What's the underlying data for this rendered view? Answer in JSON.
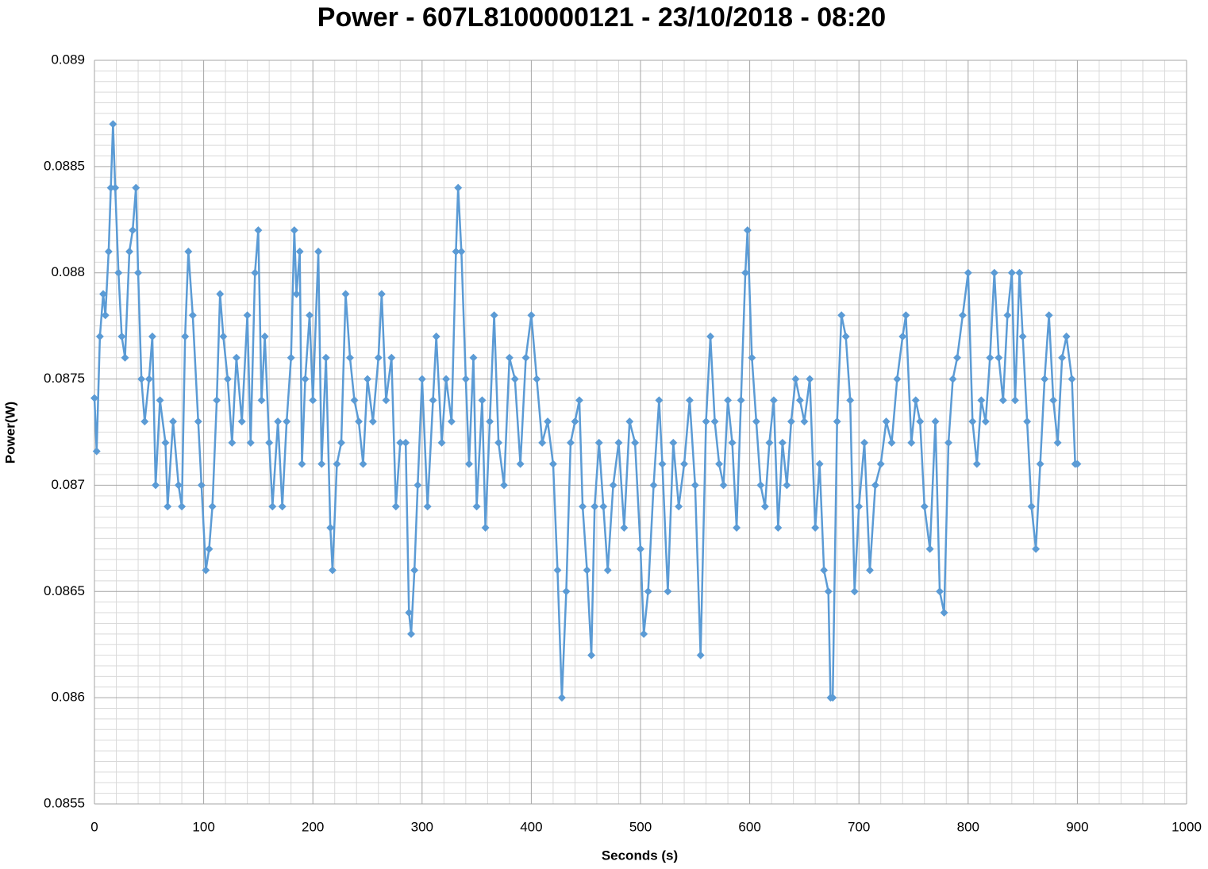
{
  "chart_data": {
    "type": "line",
    "title": "Power - 607L8100000121 - 23/10/2018 - 08:20",
    "x_label": "Seconds (s)",
    "y_label": "Power(W)",
    "xlim": [
      0,
      1000
    ],
    "xticks": [
      0,
      100,
      200,
      300,
      400,
      500,
      600,
      700,
      800,
      900,
      1000
    ],
    "ylim": [
      0.0855,
      0.089
    ],
    "yticks": [
      0.0855,
      0.086,
      0.0865,
      0.087,
      0.0875,
      0.088,
      0.0885,
      0.089
    ],
    "grid": true,
    "minor_grid": true,
    "marker": "diamond",
    "x": [
      0,
      2,
      5,
      8,
      10,
      13,
      15,
      17,
      19,
      22,
      25,
      28,
      32,
      35,
      38,
      40,
      43,
      46,
      50,
      53,
      56,
      60,
      65,
      67,
      72,
      77,
      80,
      83,
      86,
      90,
      95,
      98,
      102,
      105,
      108,
      112,
      115,
      118,
      122,
      126,
      130,
      135,
      140,
      143,
      147,
      150,
      153,
      156,
      160,
      163,
      168,
      172,
      176,
      180,
      183,
      185,
      188,
      190,
      193,
      197,
      200,
      205,
      208,
      212,
      216,
      218,
      222,
      226,
      230,
      234,
      238,
      242,
      246,
      250,
      255,
      260,
      263,
      267,
      272,
      276,
      280,
      285,
      288,
      290,
      293,
      296,
      300,
      305,
      310,
      313,
      318,
      322,
      327,
      331,
      333,
      336,
      340,
      343,
      347,
      350,
      355,
      358,
      362,
      366,
      370,
      375,
      380,
      385,
      390,
      395,
      400,
      405,
      410,
      415,
      420,
      424,
      428,
      432,
      436,
      440,
      444,
      447,
      451,
      455,
      458,
      462,
      466,
      470,
      475,
      480,
      485,
      490,
      495,
      500,
      503,
      507,
      512,
      517,
      520,
      525,
      530,
      535,
      540,
      545,
      550,
      555,
      560,
      564,
      568,
      572,
      576,
      580,
      584,
      588,
      592,
      596,
      598,
      602,
      606,
      610,
      614,
      618,
      622,
      626,
      630,
      634,
      638,
      642,
      646,
      650,
      655,
      660,
      664,
      668,
      672,
      674,
      676,
      680,
      684,
      688,
      692,
      696,
      700,
      705,
      710,
      715,
      720,
      725,
      730,
      735,
      740,
      743,
      748,
      752,
      756,
      760,
      765,
      770,
      774,
      778,
      782,
      786,
      790,
      795,
      800,
      804,
      808,
      812,
      816,
      820,
      824,
      828,
      832,
      836,
      840,
      843,
      847,
      850,
      854,
      858,
      862,
      866,
      870,
      874,
      878,
      882,
      886,
      890,
      895,
      898,
      900
    ],
    "series": [
      {
        "name": "Power(W)",
        "color": "#5b9bd5",
        "values": [
          0.08741,
          0.08716,
          0.0877,
          0.0879,
          0.0878,
          0.0881,
          0.0884,
          0.0887,
          0.0884,
          0.088,
          0.0877,
          0.0876,
          0.0881,
          0.0882,
          0.0884,
          0.088,
          0.0875,
          0.0873,
          0.0875,
          0.0877,
          0.087,
          0.0874,
          0.0872,
          0.0869,
          0.0873,
          0.087,
          0.0869,
          0.0877,
          0.0881,
          0.0878,
          0.0873,
          0.087,
          0.0866,
          0.0867,
          0.0869,
          0.0874,
          0.0879,
          0.0877,
          0.0875,
          0.0872,
          0.0876,
          0.0873,
          0.0878,
          0.0872,
          0.088,
          0.0882,
          0.0874,
          0.0877,
          0.0872,
          0.0869,
          0.0873,
          0.0869,
          0.0873,
          0.0876,
          0.0882,
          0.0879,
          0.0881,
          0.0871,
          0.0875,
          0.0878,
          0.0874,
          0.0881,
          0.0871,
          0.0876,
          0.0868,
          0.0866,
          0.0871,
          0.0872,
          0.0879,
          0.0876,
          0.0874,
          0.0873,
          0.0871,
          0.0875,
          0.0873,
          0.0876,
          0.0879,
          0.0874,
          0.0876,
          0.0869,
          0.0872,
          0.0872,
          0.0864,
          0.0863,
          0.0866,
          0.087,
          0.0875,
          0.0869,
          0.0874,
          0.0877,
          0.0872,
          0.0875,
          0.0873,
          0.0881,
          0.0884,
          0.0881,
          0.0875,
          0.0871,
          0.0876,
          0.0869,
          0.0874,
          0.0868,
          0.0873,
          0.0878,
          0.0872,
          0.087,
          0.0876,
          0.0875,
          0.0871,
          0.0876,
          0.0878,
          0.0875,
          0.0872,
          0.0873,
          0.0871,
          0.0866,
          0.086,
          0.0865,
          0.0872,
          0.0873,
          0.0874,
          0.0869,
          0.0866,
          0.0862,
          0.0869,
          0.0872,
          0.0869,
          0.0866,
          0.087,
          0.0872,
          0.0868,
          0.0873,
          0.0872,
          0.0867,
          0.0863,
          0.0865,
          0.087,
          0.0874,
          0.0871,
          0.0865,
          0.0872,
          0.0869,
          0.0871,
          0.0874,
          0.087,
          0.0862,
          0.0873,
          0.0877,
          0.0873,
          0.0871,
          0.087,
          0.0874,
          0.0872,
          0.0868,
          0.0874,
          0.088,
          0.0882,
          0.0876,
          0.0873,
          0.087,
          0.0869,
          0.0872,
          0.0874,
          0.0868,
          0.0872,
          0.087,
          0.0873,
          0.0875,
          0.0874,
          0.0873,
          0.0875,
          0.0868,
          0.0871,
          0.0866,
          0.0865,
          0.086,
          0.086,
          0.0873,
          0.0878,
          0.0877,
          0.0874,
          0.0865,
          0.0869,
          0.0872,
          0.0866,
          0.087,
          0.0871,
          0.0873,
          0.0872,
          0.0875,
          0.0877,
          0.0878,
          0.0872,
          0.0874,
          0.0873,
          0.0869,
          0.0867,
          0.0873,
          0.0865,
          0.0864,
          0.0872,
          0.0875,
          0.0876,
          0.0878,
          0.088,
          0.0873,
          0.0871,
          0.0874,
          0.0873,
          0.0876,
          0.088,
          0.0876,
          0.0874,
          0.0878,
          0.088,
          0.0874,
          0.088,
          0.0877,
          0.0873,
          0.0869,
          0.0867,
          0.0871,
          0.0875,
          0.0878,
          0.0874,
          0.0872,
          0.0876,
          0.0877,
          0.0875,
          0.0871,
          0.0871
        ]
      }
    ]
  }
}
